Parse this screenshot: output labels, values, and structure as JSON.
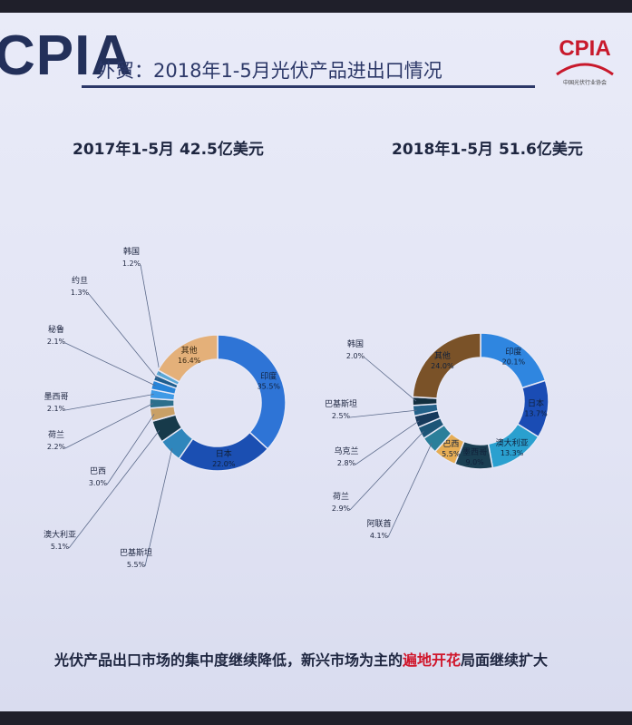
{
  "header": {
    "brand": "CPIA",
    "title": "外贸：2018年1-5月光伏产品进出口情况",
    "logo_text": "CPIA",
    "logo_subtext": "中国光伏行业协会"
  },
  "footer": {
    "text_before": "光伏产品出口市场的集中度继续降低，新兴市场为主的",
    "highlight": "遍地开花",
    "text_after": "局面继续扩大"
  },
  "colors": {
    "accent": "#2c3868",
    "highlight": "#d0152a"
  },
  "chart_data": [
    {
      "type": "pie",
      "donut": true,
      "title": "2017年1-5月 42.5亿美元",
      "slices": [
        {
          "name": "印度",
          "value": 35.5,
          "label": "35.5%",
          "color": "#2e74d6"
        },
        {
          "name": "日本",
          "value": 22.0,
          "label": "22.0%",
          "color": "#1b4fb2"
        },
        {
          "name": "巴基斯坦",
          "value": 5.5,
          "label": "5.5%",
          "color": "#2f86bc"
        },
        {
          "name": "澳大利亚",
          "value": 5.1,
          "label": "5.1%",
          "color": "#173a4a"
        },
        {
          "name": "巴西",
          "value": 3.0,
          "label": "3.0%",
          "color": "#c9a066"
        },
        {
          "name": "荷兰",
          "value": 2.2,
          "label": "2.2%",
          "color": "#2b6f8c"
        },
        {
          "name": "墨西哥",
          "value": 2.1,
          "label": "2.1%",
          "color": "#3f9ae6"
        },
        {
          "name": "秘鲁",
          "value": 2.1,
          "label": "2.1%",
          "color": "#2784d8"
        },
        {
          "name": "约旦",
          "value": 1.3,
          "label": "1.3%",
          "color": "#1f5e8e"
        },
        {
          "name": "韩国",
          "value": 1.2,
          "label": "1.2%",
          "color": "#5aa8d6"
        },
        {
          "name": "其他",
          "value": 16.4,
          "label": "16.4%",
          "color": "#e4b079"
        }
      ]
    },
    {
      "type": "pie",
      "donut": true,
      "title": "2018年1-5月 51.6亿美元",
      "slices": [
        {
          "name": "印度",
          "value": 20.1,
          "label": "20.1%",
          "color": "#2f86e0"
        },
        {
          "name": "日本",
          "value": 13.7,
          "label": "13.7%",
          "color": "#1a4cb4"
        },
        {
          "name": "澳大利亚",
          "value": 13.3,
          "label": "13.3%",
          "color": "#2aa0cf"
        },
        {
          "name": "墨西哥",
          "value": 9.0,
          "label": "9.0%",
          "color": "#1a3f52"
        },
        {
          "name": "巴西",
          "value": 5.5,
          "label": "5.5%",
          "color": "#e6ad55"
        },
        {
          "name": "阿联酋",
          "value": 4.1,
          "label": "4.1%",
          "color": "#2b7f9a"
        },
        {
          "name": "荷兰",
          "value": 2.9,
          "label": "2.9%",
          "color": "#1d5577"
        },
        {
          "name": "乌克兰",
          "value": 2.8,
          "label": "2.8%",
          "color": "#173a5c"
        },
        {
          "name": "巴基斯坦",
          "value": 2.5,
          "label": "2.5%",
          "color": "#24628a"
        },
        {
          "name": "韩国",
          "value": 2.0,
          "label": "2.0%",
          "color": "#132f3f"
        },
        {
          "name": "其他",
          "value": 24.0,
          "label": "24.0%",
          "color": "#7a5228"
        }
      ]
    }
  ]
}
